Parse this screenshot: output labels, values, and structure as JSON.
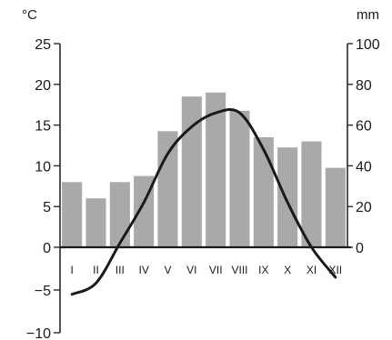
{
  "chart_data": {
    "type": "bar+line",
    "left_unit": "°C",
    "right_unit": "mm",
    "categories": [
      "I",
      "II",
      "III",
      "IV",
      "V",
      "VI",
      "VII",
      "VIII",
      "IX",
      "X",
      "XI",
      "XII"
    ],
    "precipitation": {
      "values": [
        32,
        24,
        32,
        35,
        57,
        74,
        76,
        67,
        54,
        49,
        52,
        39
      ],
      "color": "#a9a9a9",
      "ylim": [
        0,
        100
      ],
      "ticks": [
        {
          "value": 0,
          "label": "0"
        },
        {
          "value": 20,
          "label": "20"
        },
        {
          "value": 40,
          "label": "40"
        },
        {
          "value": 60,
          "label": "60"
        },
        {
          "value": 80,
          "label": "80"
        },
        {
          "value": 100,
          "label": "100"
        }
      ]
    },
    "temperature": {
      "values": [
        -5.5,
        -4.2,
        0.5,
        5.5,
        11.5,
        14.8,
        16.5,
        16.5,
        12.0,
        5.5,
        0.0,
        -3.5
      ],
      "color": "#1a1a1a",
      "ylim": [
        -10,
        25
      ],
      "ticks": [
        {
          "value": 25,
          "label": "25"
        },
        {
          "value": 20,
          "label": "20"
        },
        {
          "value": 15,
          "label": "15"
        },
        {
          "value": 10,
          "label": "10"
        },
        {
          "value": 5,
          "label": "5"
        },
        {
          "value": 0,
          "label": "0"
        },
        {
          "value": -5,
          "label": "−5"
        },
        {
          "value": -10,
          "label": "−10"
        }
      ]
    },
    "grid": false,
    "legend": "none"
  }
}
